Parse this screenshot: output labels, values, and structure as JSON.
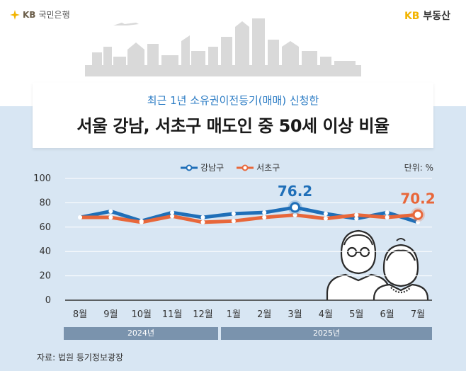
{
  "header": {
    "brand_left_kb": "KB",
    "brand_left_name": "국민은행",
    "brand_right_kb": "KB",
    "brand_right_name": "부동산"
  },
  "title": {
    "subtitle": "최근 1년 소유권이전등기(매매) 신청한",
    "main": "서울 강남, 서초구 매도인 중 50세 이상 비율"
  },
  "unit_label": "단위: %",
  "colors": {
    "gangnam": "#1f6fb8",
    "seocho": "#e8673a",
    "band": "#d8e6f3",
    "year_bar": "#7a93ad"
  },
  "years": [
    "2024년",
    "2025년"
  ],
  "source": "자료: 법원 등기정보광장",
  "chart_data": {
    "type": "line",
    "title": "서울 강남, 서초구 매도인 중 50세 이상 비율",
    "categories": [
      "8월",
      "9월",
      "10월",
      "11월",
      "12월",
      "1월",
      "2월",
      "3월",
      "4월",
      "5월",
      "6월",
      "7월"
    ],
    "ylim": [
      0,
      100
    ],
    "yticks": [
      0,
      20,
      40,
      60,
      80,
      100
    ],
    "series": [
      {
        "name": "강남구",
        "values": [
          68,
          73,
          65,
          72,
          68,
          71,
          72,
          76.2,
          71,
          67,
          72,
          64
        ]
      },
      {
        "name": "서초구",
        "values": [
          68,
          68,
          64,
          69,
          64,
          65,
          68,
          70,
          67,
          70,
          68,
          70.2
        ]
      }
    ],
    "annotations": [
      {
        "series": "강남구",
        "category": "3월",
        "label": "76.2"
      },
      {
        "series": "서초구",
        "category": "7월",
        "label": "70.2"
      }
    ]
  }
}
